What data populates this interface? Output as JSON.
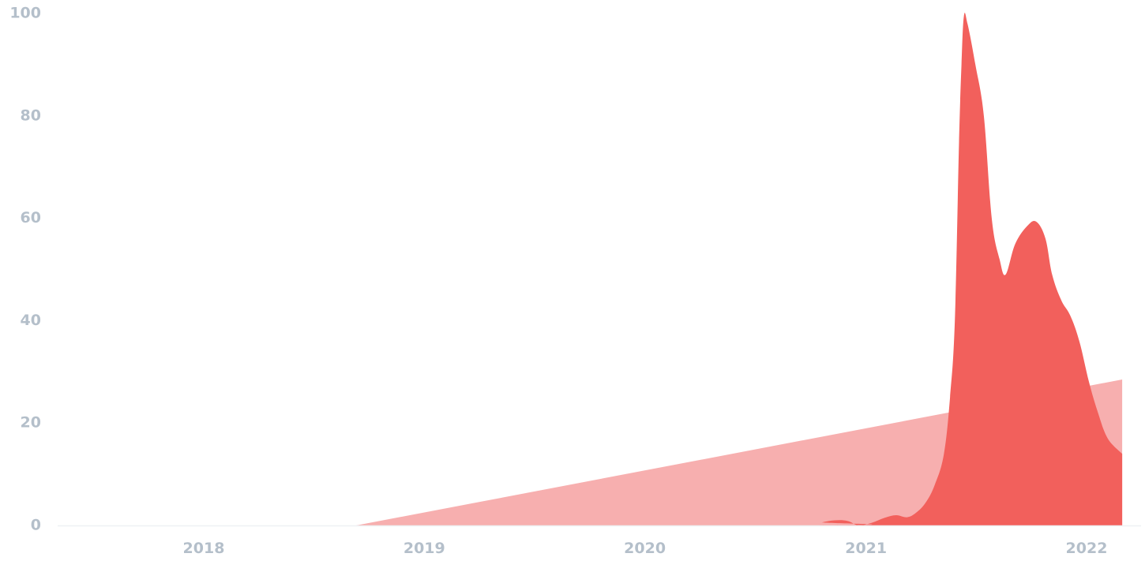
{
  "chart_data": {
    "type": "area",
    "title": "",
    "xlabel": "",
    "ylabel": "",
    "ylim": [
      0,
      100
    ],
    "xlim": [
      "2017-06-01",
      "2022-03-01"
    ],
    "grid": false,
    "legend": "none",
    "y_ticks": [
      "0",
      "20",
      "40",
      "60",
      "80",
      "100"
    ],
    "x_ticks": [
      {
        "label": "2018",
        "date": "2018-01-01"
      },
      {
        "label": "2019",
        "date": "2019-01-01"
      },
      {
        "label": "2020",
        "date": "2020-01-01"
      },
      {
        "label": "2021",
        "date": "2021-01-01"
      },
      {
        "label": "2022",
        "date": "2022-01-01"
      }
    ],
    "series": [
      {
        "color": "#f7afaf",
        "points": [
          {
            "x": "2017-06-01",
            "y": 0
          },
          {
            "x": "2018-09-10",
            "y": 0
          },
          {
            "x": "2022-03-01",
            "y": 28.5
          }
        ]
      },
      {
        "color": "#f2605c",
        "points": [
          {
            "x": "2017-06-01",
            "y": 0
          },
          {
            "x": "2020-10-01",
            "y": 0
          },
          {
            "x": "2020-10-20",
            "y": 0.6
          },
          {
            "x": "2020-11-10",
            "y": 1.0
          },
          {
            "x": "2020-12-01",
            "y": 0.9
          },
          {
            "x": "2020-12-20",
            "y": 0
          },
          {
            "x": "2021-01-10",
            "y": 0.5
          },
          {
            "x": "2021-02-01",
            "y": 1.5
          },
          {
            "x": "2021-02-20",
            "y": 2.0
          },
          {
            "x": "2021-03-10",
            "y": 1.6
          },
          {
            "x": "2021-03-25",
            "y": 2.5
          },
          {
            "x": "2021-04-10",
            "y": 4.5
          },
          {
            "x": "2021-04-25",
            "y": 8.0
          },
          {
            "x": "2021-05-10",
            "y": 14.0
          },
          {
            "x": "2021-05-20",
            "y": 25.0
          },
          {
            "x": "2021-05-28",
            "y": 40.0
          },
          {
            "x": "2021-06-04",
            "y": 75.0
          },
          {
            "x": "2021-06-08",
            "y": 90.0
          },
          {
            "x": "2021-06-12",
            "y": 99.5
          },
          {
            "x": "2021-06-18",
            "y": 98.0
          },
          {
            "x": "2021-07-01",
            "y": 90.0
          },
          {
            "x": "2021-07-15",
            "y": 80.0
          },
          {
            "x": "2021-07-28",
            "y": 60.0
          },
          {
            "x": "2021-08-10",
            "y": 52.0
          },
          {
            "x": "2021-08-20",
            "y": 49.0
          },
          {
            "x": "2021-09-05",
            "y": 55.0
          },
          {
            "x": "2021-09-25",
            "y": 58.5
          },
          {
            "x": "2021-10-10",
            "y": 59.3
          },
          {
            "x": "2021-10-25",
            "y": 56.0
          },
          {
            "x": "2021-11-05",
            "y": 49.0
          },
          {
            "x": "2021-11-20",
            "y": 44.0
          },
          {
            "x": "2021-12-05",
            "y": 41.0
          },
          {
            "x": "2021-12-20",
            "y": 36.0
          },
          {
            "x": "2022-01-05",
            "y": 28.0
          },
          {
            "x": "2022-01-20",
            "y": 22.0
          },
          {
            "x": "2022-02-05",
            "y": 17.0
          },
          {
            "x": "2022-03-01",
            "y": 14.0
          }
        ]
      }
    ]
  }
}
